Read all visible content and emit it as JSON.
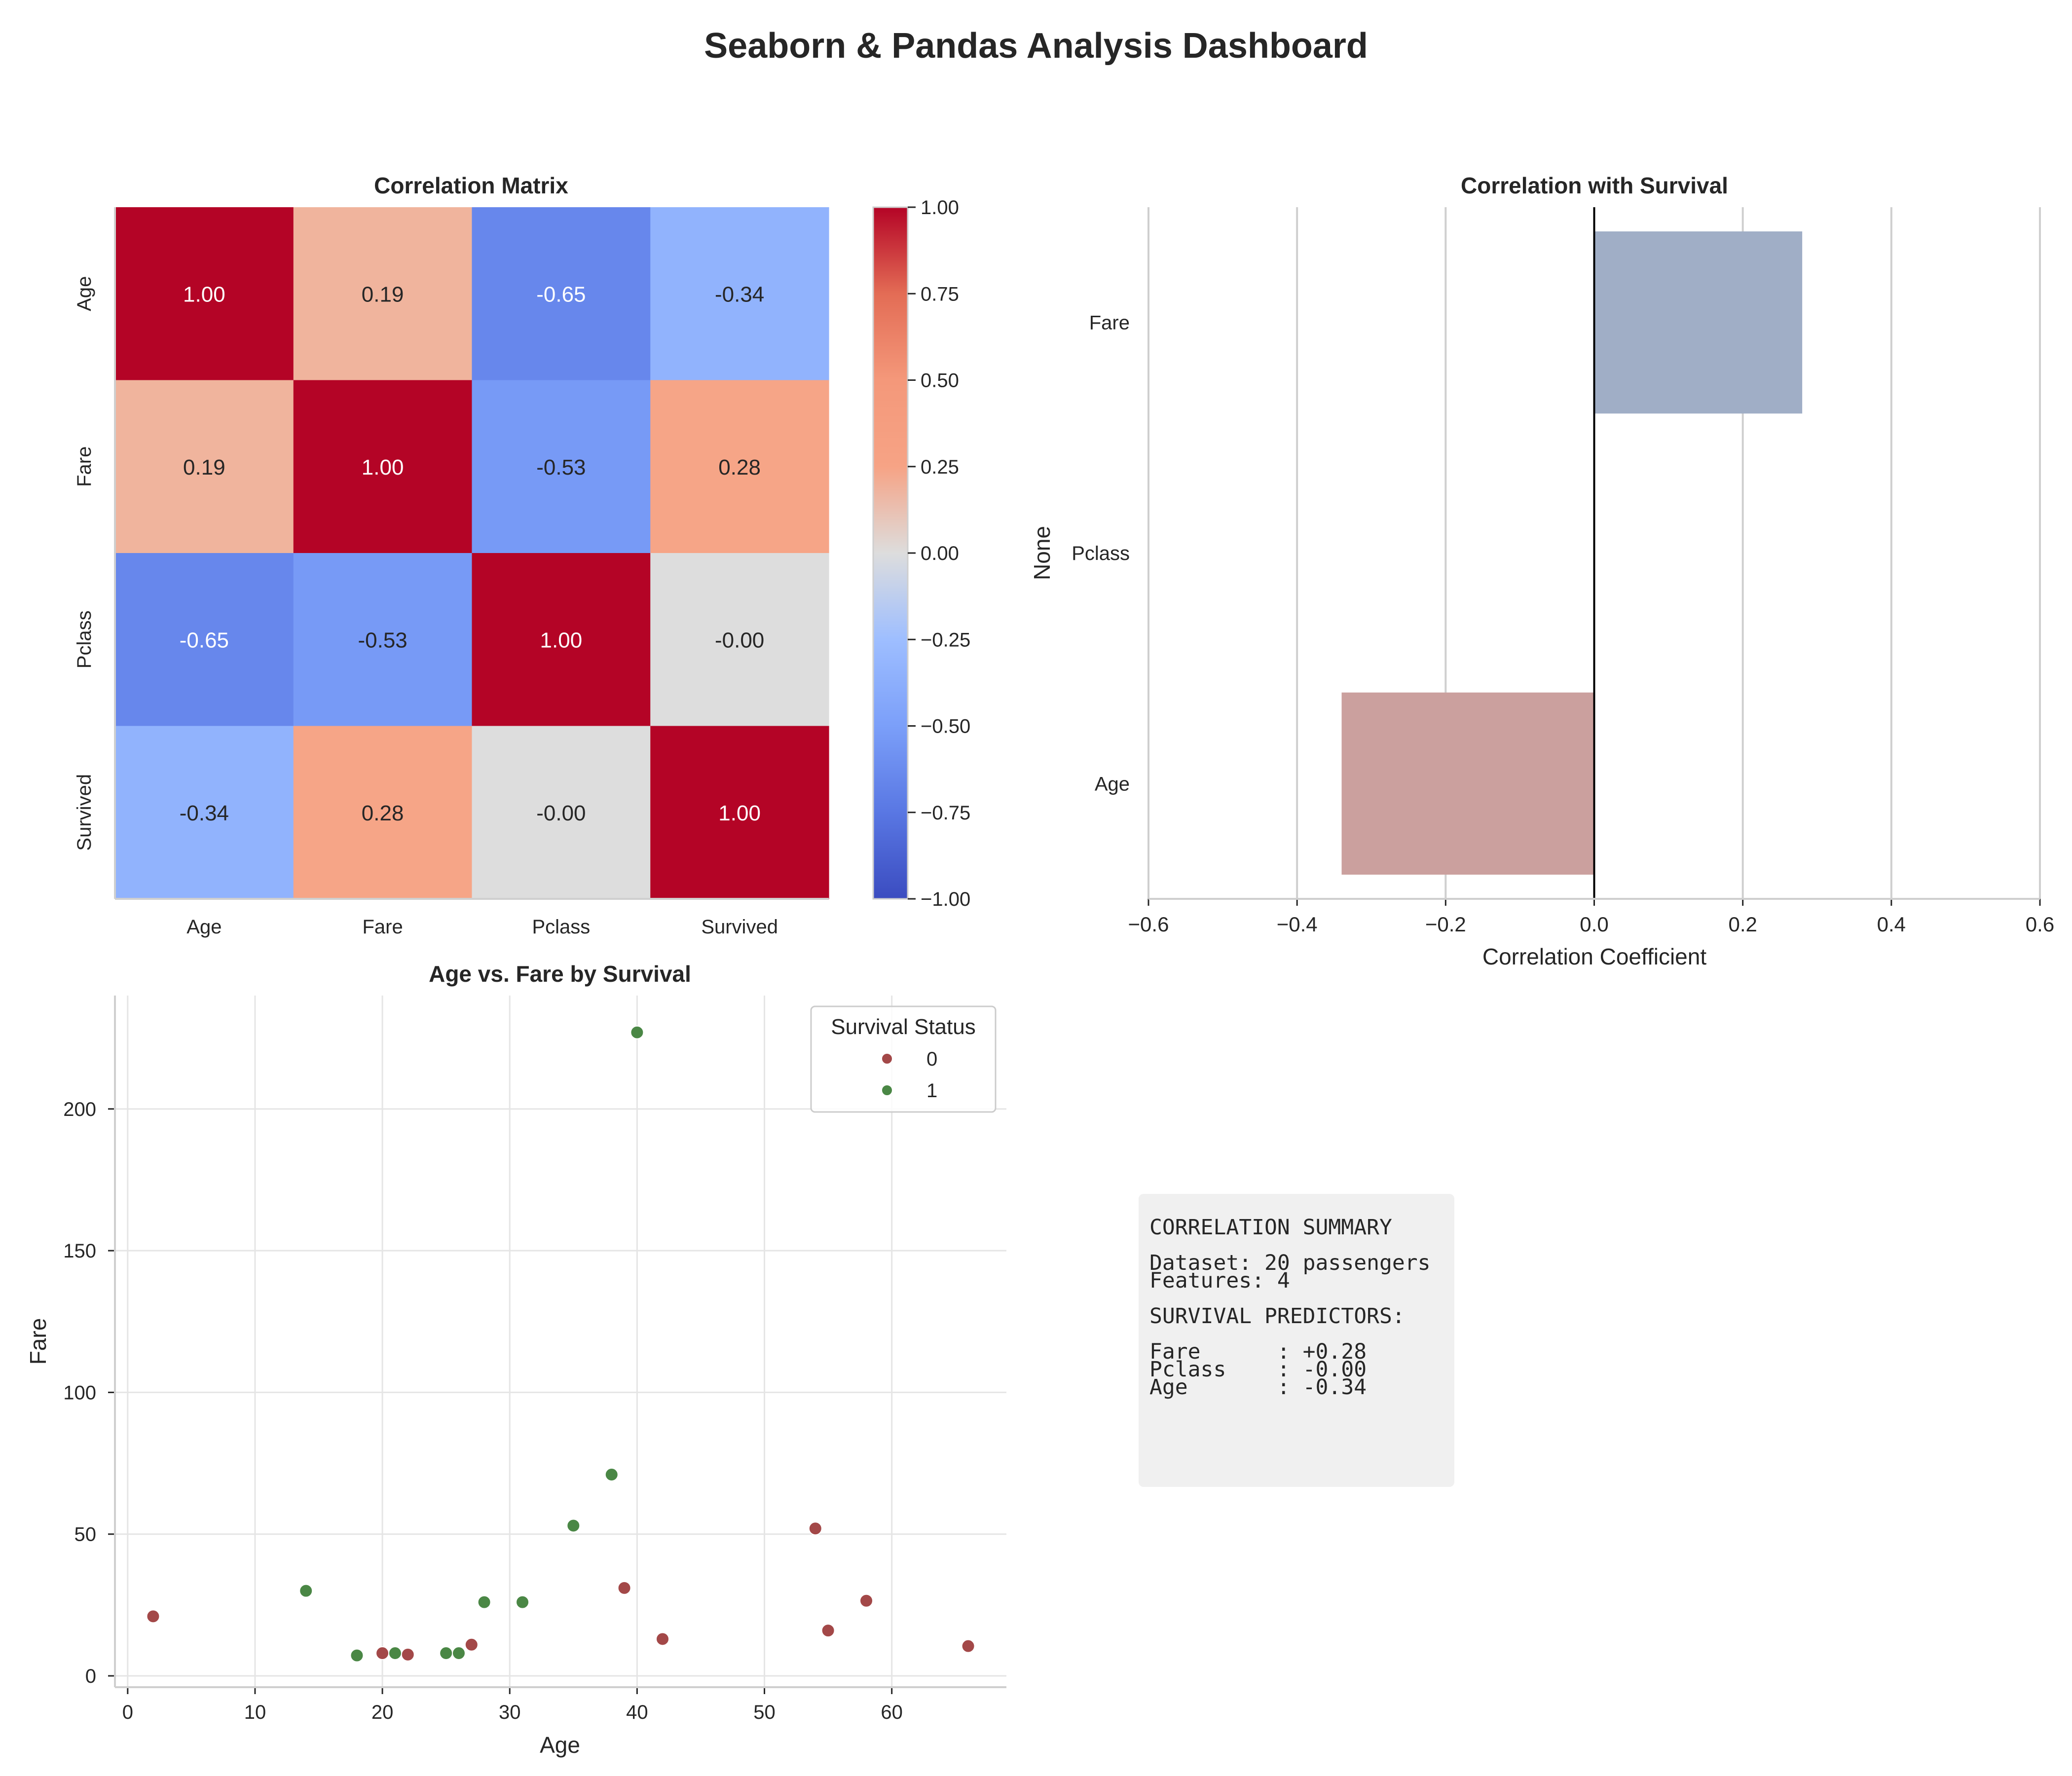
{
  "page_title": "Seaborn & Pandas Analysis Dashboard",
  "colors": {
    "survived_0": "#a34848",
    "survived_1": "#4a8745",
    "bar_positive": "#a0aec6",
    "bar_negative": "#cba09e",
    "summary_bg": "#f0f0f0",
    "grid": "#e5e5e5",
    "axis": "#cfcfcf"
  },
  "chart_data": [
    {
      "type": "heatmap",
      "title": "Correlation Matrix",
      "rows": [
        "Age",
        "Fare",
        "Pclass",
        "Survived"
      ],
      "cols": [
        "Age",
        "Fare",
        "Pclass",
        "Survived"
      ],
      "values": [
        [
          1.0,
          0.19,
          -0.65,
          -0.34
        ],
        [
          0.19,
          1.0,
          -0.53,
          0.28
        ],
        [
          -0.65,
          -0.53,
          1.0,
          -0.0
        ],
        [
          -0.34,
          0.28,
          -0.0,
          1.0
        ]
      ],
      "annotations": [
        [
          "1.00",
          "0.19",
          "-0.65",
          "-0.34"
        ],
        [
          "0.19",
          "1.00",
          "-0.53",
          "0.28"
        ],
        [
          "-0.65",
          "-0.53",
          "1.00",
          "-0.00"
        ],
        [
          "-0.34",
          "0.28",
          "-0.00",
          "1.00"
        ]
      ],
      "colormap": "coolwarm",
      "vmin": -1,
      "vmax": 1,
      "colorbar_ticks": [
        "1.00",
        "0.75",
        "0.50",
        "0.25",
        "0.00",
        "−0.25",
        "−0.50",
        "−0.75",
        "−1.00"
      ],
      "colorbar_tick_values": [
        1.0,
        0.75,
        0.5,
        0.25,
        0.0,
        -0.25,
        -0.5,
        -0.75,
        -1.0
      ]
    },
    {
      "type": "bar",
      "orientation": "horizontal",
      "title": "Correlation with Survival",
      "categories": [
        "Fare",
        "Pclass",
        "Age"
      ],
      "values": [
        0.28,
        -0.0,
        -0.34
      ],
      "xlabel": "Correlation Coefficient",
      "ylabel": "None",
      "xlim": [
        -0.6,
        0.6
      ],
      "xticks": [
        -0.6,
        -0.4,
        -0.2,
        0.0,
        0.2,
        0.4,
        0.6
      ],
      "xtick_labels": [
        "−0.6",
        "−0.4",
        "−0.2",
        "0.0",
        "0.2",
        "0.4",
        "0.6"
      ],
      "grid": "vertical"
    },
    {
      "type": "scatter",
      "title": "Age vs. Fare by Survival",
      "xlabel": "Age",
      "ylabel": "Fare",
      "xlim": [
        -1,
        69
      ],
      "ylim": [
        -4,
        240
      ],
      "xticks": [
        0,
        10,
        20,
        30,
        40,
        50,
        60
      ],
      "yticks": [
        0,
        50,
        100,
        150,
        200
      ],
      "legend": {
        "title": "Survival Status",
        "entries": [
          "0",
          "1"
        ],
        "placement": "top-right"
      },
      "series": [
        {
          "name": "0",
          "points": [
            [
              2,
              21
            ],
            [
              20,
              8
            ],
            [
              22,
              7.5
            ],
            [
              27,
              11
            ],
            [
              39,
              31
            ],
            [
              42,
              13
            ],
            [
              54,
              52
            ],
            [
              55,
              16
            ],
            [
              58,
              26.5
            ],
            [
              66,
              10.5
            ]
          ]
        },
        {
          "name": "1",
          "points": [
            [
              14,
              30
            ],
            [
              18,
              7.2
            ],
            [
              21,
              8
            ],
            [
              25,
              8
            ],
            [
              26,
              8
            ],
            [
              28,
              26
            ],
            [
              31,
              26
            ],
            [
              35,
              53
            ],
            [
              38,
              71
            ],
            [
              40,
              227
            ]
          ]
        }
      ]
    }
  ],
  "summary": {
    "lines": [
      "CORRELATION SUMMARY",
      "",
      "Dataset: 20 passengers",
      "Features: 4",
      "",
      "SURVIVAL PREDICTORS:",
      "",
      "Fare      : +0.28",
      "Pclass    : -0.00",
      "Age       : -0.34"
    ]
  }
}
